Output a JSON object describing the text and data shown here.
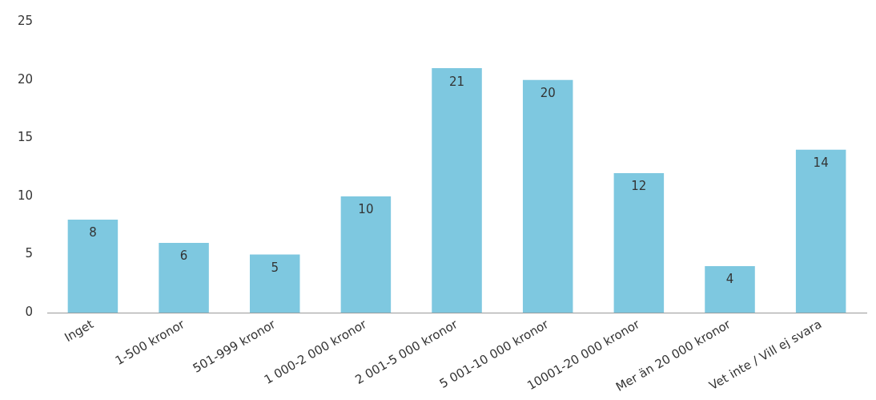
{
  "chart_data": {
    "type": "bar",
    "categories": [
      "Inget",
      "1-500 kronor",
      "501-999 kronor",
      "1 000-2 000 kronor",
      "2 001-5 000 kronor",
      "5 001-10 000 kronor",
      "10001-20 000 kronor",
      "Mer än 20 000 kronor",
      "Vet inte / Vill ej svara"
    ],
    "values": [
      8,
      6,
      5,
      10,
      21,
      20,
      12,
      4,
      14
    ],
    "color": "#7ec8e0",
    "ylim": [
      0,
      25
    ],
    "yticks": [
      0,
      5,
      10,
      15,
      20,
      25
    ],
    "grid": false,
    "legend": false,
    "data_labels": true
  }
}
